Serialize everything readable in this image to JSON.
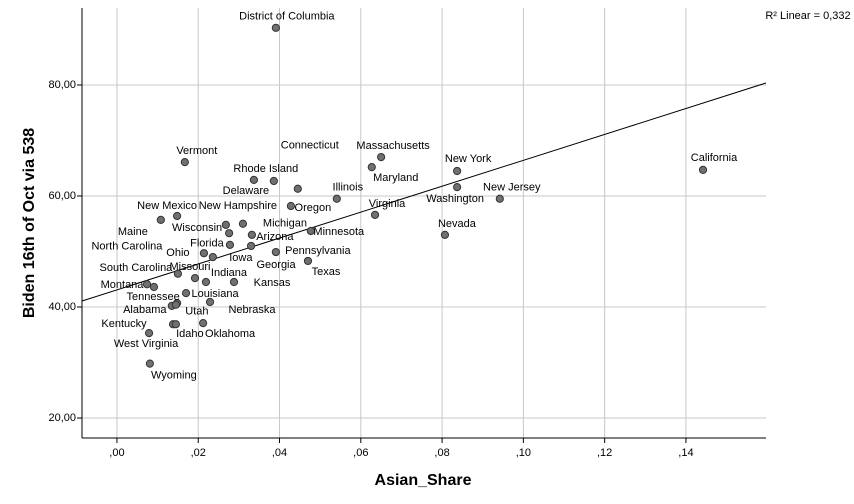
{
  "chart_data": {
    "type": "scatter",
    "x_label": "Asian_Share",
    "y_label": "Biden 16th of Oct via 538",
    "annotation": "R² Linear = 0,332",
    "xlim": [
      -0.0086,
      0.1597
    ],
    "ylim": [
      16.4,
      93.87
    ],
    "xticks": [
      {
        "value": 0,
        "label": ",00"
      },
      {
        "value": 0.02,
        "label": ",02"
      },
      {
        "value": 0.04,
        "label": ",04"
      },
      {
        "value": 0.06,
        "label": ",06"
      },
      {
        "value": 0.08,
        "label": ",08"
      },
      {
        "value": 0.1,
        "label": ",10"
      },
      {
        "value": 0.12,
        "label": ",12"
      },
      {
        "value": 0.14,
        "label": ",14"
      }
    ],
    "yticks": [
      {
        "value": 20,
        "label": "20,00"
      },
      {
        "value": 40,
        "label": "40,00"
      },
      {
        "value": 60,
        "label": "60,00"
      },
      {
        "value": 80,
        "label": "80,00"
      }
    ],
    "grid": true,
    "color": "#707070",
    "labels": [
      "District of Columbia",
      "Vermont",
      "Connecticut",
      "Rhode Island",
      "Delaware",
      "Massachusetts",
      "Maryland",
      "New York",
      "New Jersey",
      "Washington",
      "California",
      "Illinois",
      "Oregon",
      "Virginia",
      "Nevada",
      "Minnesota",
      "New Hampshire",
      "Michigan",
      "Wisconsin",
      "Arizona",
      "Florida",
      "Georgia",
      "Pennsylvania",
      "Texas",
      "Iowa",
      "Ohio",
      "Maine",
      "New Mexico",
      "North Carolina",
      "Missouri",
      "Indiana",
      "Kansas",
      "Montana",
      "South Carolina",
      "Louisiana",
      "Tennessee",
      "Alabama",
      "Utah",
      "Nebraska",
      "Kentucky",
      "Idaho",
      "Oklahoma",
      "West Virginia",
      "Wyoming"
    ],
    "x": [
      0.0391,
      0.0167,
      0.0445,
      0.0386,
      0.0337,
      0.065,
      0.0627,
      0.0837,
      0.0942,
      0.0837,
      0.1442,
      0.0541,
      0.0428,
      0.0635,
      0.0807,
      0.0477,
      0.0268,
      0.031,
      0.0276,
      0.0332,
      0.0278,
      0.033,
      0.0391,
      0.047,
      0.0236,
      0.0214,
      0.0108,
      0.0148,
      0.015,
      0.0192,
      0.0219,
      0.0288,
      0.0074,
      0.0091,
      0.017,
      0.0148,
      0.0135,
      0.0145,
      0.0229,
      0.0138,
      0.0145,
      0.0212,
      0.0079,
      0.0081
    ],
    "y": [
      90.3,
      66.1,
      61.3,
      62.7,
      62.9,
      67.0,
      65.2,
      64.5,
      59.5,
      61.6,
      64.7,
      59.5,
      58.2,
      56.6,
      53.0,
      53.7,
      54.8,
      55.0,
      53.3,
      53.0,
      51.2,
      51.0,
      49.9,
      48.3,
      49.0,
      49.7,
      55.7,
      56.4,
      46.0,
      45.2,
      44.5,
      44.5,
      44.1,
      43.6,
      42.5,
      40.7,
      40.2,
      40.4,
      40.9,
      36.9,
      36.9,
      37.1,
      35.3,
      29.8
    ],
    "fit_line": {
      "x": [
        -0.0086,
        0.1597
      ],
      "y": [
        41.08,
        80.36
      ]
    }
  }
}
